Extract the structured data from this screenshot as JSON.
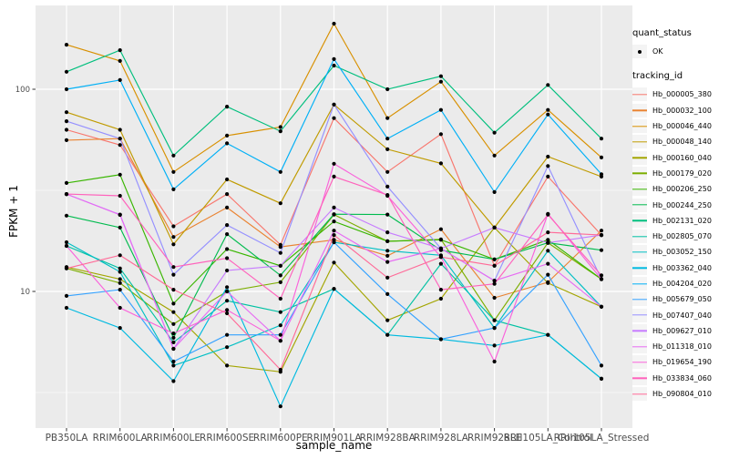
{
  "chart_data": {
    "type": "line",
    "title": "",
    "xlabel": "sample_name",
    "ylabel": "FPKM + 1",
    "yscale": "log10",
    "grid": true,
    "legend_position": "right",
    "panel_background": "#EBEBEB",
    "gridline_color": "#FFFFFF",
    "marker": {
      "shape": "filled-point",
      "color": "#000000"
    },
    "x_categories": [
      "PB350LA",
      "RRIM600LA",
      "RRIM600LE",
      "RRIM600SE",
      "RRIM600PE",
      "RRIM901LA",
      "RRIM928BA",
      "RRIM928LA",
      "RRIM928LE",
      "RRII105LA_Control",
      "RRII105LA_Stressed"
    ],
    "y_ticks": [
      {
        "label": "100",
        "value": 100
      },
      {
        "label": "10",
        "value": 10
      }
    ],
    "y_minor_gridline_values": [
      3.162,
      31.62
    ],
    "ylim": [
      2.1,
      260
    ],
    "series": [
      {
        "tracking_id": "Hb_000005_380",
        "color": "#F8766D",
        "values": [
          63,
          53,
          21,
          30.3,
          17,
          72,
          39,
          60,
          13.4,
          37,
          19
        ]
      },
      {
        "tracking_id": "Hb_000032_100",
        "color": "#EA8331",
        "values": [
          56,
          57,
          18.6,
          26,
          16.6,
          18,
          15,
          20.3,
          9.3,
          11.1,
          20
        ]
      },
      {
        "tracking_id": "Hb_000046_440",
        "color": "#D89000",
        "values": [
          166,
          138,
          39,
          59,
          65,
          211,
          72,
          109,
          47,
          79,
          46
        ]
      },
      {
        "tracking_id": "Hb_000048_140",
        "color": "#C09B00",
        "values": [
          77,
          63,
          17.1,
          35.8,
          27.3,
          84,
          50.5,
          43,
          20.7,
          46.4,
          37
        ]
      },
      {
        "tracking_id": "Hb_000160_040",
        "color": "#A3A500",
        "values": [
          13.2,
          11.5,
          7.9,
          4.3,
          4.0,
          13.9,
          7.2,
          9.2,
          20.7,
          11,
          8.4
        ]
      },
      {
        "tracking_id": "Hb_000179_020",
        "color": "#7CAE00",
        "values": [
          13.0,
          11.0,
          6.9,
          10,
          11.1,
          24,
          17.7,
          18.1,
          7.2,
          17.4,
          11.5
        ]
      },
      {
        "tracking_id": "Hb_000206_250",
        "color": "#39B600",
        "values": [
          34.4,
          37.8,
          8.7,
          16.2,
          13.4,
          22.2,
          17.7,
          18,
          14.4,
          18,
          11.5
        ]
      },
      {
        "tracking_id": "Hb_000244_250",
        "color": "#00BB4E",
        "values": [
          23.7,
          20.7,
          5.9,
          19.2,
          12,
          24.1,
          24,
          16,
          14.4,
          17.4,
          16
        ]
      },
      {
        "tracking_id": "Hb_002131_020",
        "color": "#00BF7D",
        "values": [
          122,
          156,
          47,
          82,
          62,
          131,
          100,
          116,
          61,
          105,
          57
        ]
      },
      {
        "tracking_id": "Hb_002805_070",
        "color": "#00C1A3",
        "values": [
          16.8,
          13,
          5.6,
          9,
          7.9,
          10.3,
          6.1,
          13.7,
          7.2,
          6.1,
          3.7
        ]
      },
      {
        "tracking_id": "Hb_003052_150",
        "color": "#00BFC4",
        "values": [
          17.5,
          12.5,
          4.3,
          5.3,
          6.8,
          17.5,
          15.9,
          15.1,
          6.6,
          15.9,
          8.4
        ]
      },
      {
        "tracking_id": "Hb_003362_040",
        "color": "#00BAE0",
        "values": [
          8.3,
          6.6,
          3.6,
          10.5,
          2.7,
          10.3,
          6.1,
          5.8,
          5.4,
          6.1,
          3.7
        ]
      },
      {
        "tracking_id": "Hb_004204_020",
        "color": "#00B0F6",
        "values": [
          100,
          111,
          32,
          54,
          39,
          141,
          57,
          79,
          31,
          75,
          38
        ]
      },
      {
        "tracking_id": "Hb_005679_050",
        "color": "#35A2FF",
        "values": [
          9.5,
          10.2,
          4.5,
          6.1,
          6.1,
          17.5,
          9.7,
          5.8,
          6.6,
          12.1,
          4.3
        ]
      },
      {
        "tracking_id": "Hb_007407_040",
        "color": "#9590FF",
        "values": [
          69.5,
          57,
          12.1,
          21.3,
          15.5,
          84,
          33,
          16.3,
          11.3,
          41.7,
          11.5
        ]
      },
      {
        "tracking_id": "Hb_009627_010",
        "color": "#C77CFF",
        "values": [
          30.3,
          24,
          5.2,
          12.7,
          13.4,
          26,
          19.6,
          16.3,
          20.7,
          17.4,
          19
        ]
      },
      {
        "tracking_id": "Hb_011318_010",
        "color": "#E76BF3",
        "values": [
          30.3,
          23.9,
          5.2,
          10,
          5.7,
          20,
          14,
          16.3,
          11.3,
          13.7,
          8.4
        ]
      },
      {
        "tracking_id": "Hb_019654_190",
        "color": "#FA62DB",
        "values": [
          16.8,
          8.3,
          6.2,
          8.1,
          5.7,
          42.8,
          29.7,
          14.8,
          4.5,
          24.2,
          11.5
        ]
      },
      {
        "tracking_id": "Hb_033834_060",
        "color": "#FF62BC",
        "values": [
          30.3,
          29.7,
          13.2,
          14.6,
          9.2,
          37,
          30,
          10.2,
          10.9,
          24,
          12
        ]
      },
      {
        "tracking_id": "Hb_090804_010",
        "color": "#FF6A98",
        "values": [
          13.0,
          15.1,
          10.2,
          7.8,
          4.1,
          19,
          11.7,
          14.8,
          13.4,
          19.6,
          19
        ]
      }
    ]
  },
  "legend": {
    "quant_status": {
      "title": "quant_status",
      "items": [
        {
          "label": "OK",
          "marker": "black-point"
        }
      ]
    },
    "tracking_id": {
      "title": "tracking_id"
    }
  }
}
